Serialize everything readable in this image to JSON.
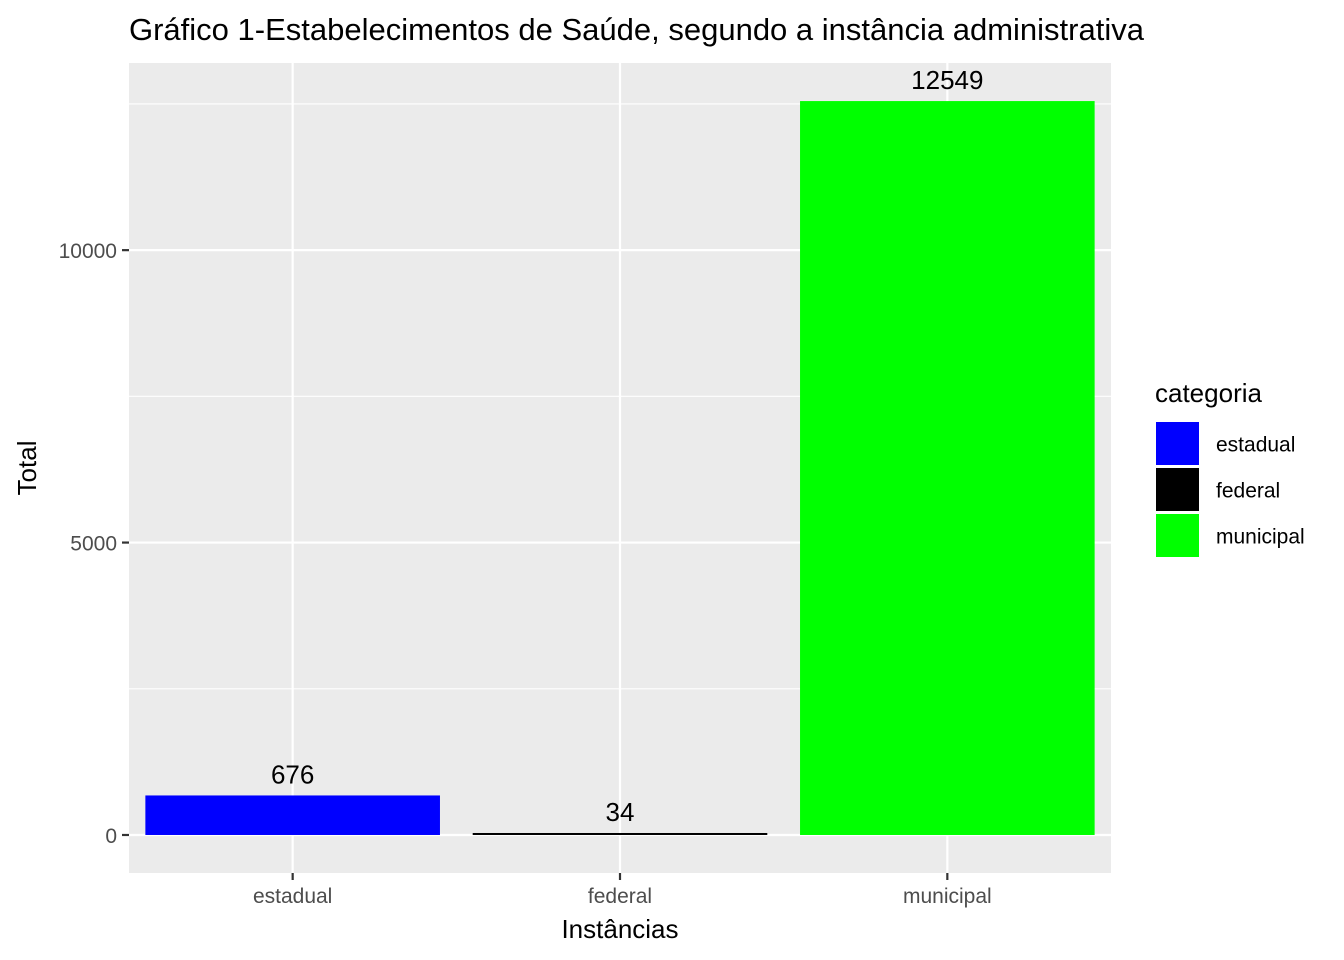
{
  "chart_data": {
    "type": "bar",
    "title": "Gráfico 1-Estabelecimentos de Saúde, segundo a instância administrativa",
    "xlabel": "Instâncias",
    "ylabel": "Total",
    "categories": [
      "estadual",
      "federal",
      "municipal"
    ],
    "values": [
      676,
      34,
      12549
    ],
    "data_labels": [
      "676",
      "34",
      "12549"
    ],
    "colors": [
      "#0000ff",
      "#000000",
      "#00ff00"
    ],
    "ylim": [
      -650,
      13200
    ],
    "yticks": [
      0,
      5000,
      10000
    ],
    "ytick_labels": [
      "0",
      "5000",
      "10000"
    ],
    "grid": true,
    "panel_background": "#ebebeb",
    "legend": {
      "title": "categoria",
      "position": "right",
      "entries": [
        {
          "label": "estadual",
          "color": "#0000ff"
        },
        {
          "label": "federal",
          "color": "#000000"
        },
        {
          "label": "municipal",
          "color": "#00ff00"
        }
      ]
    }
  }
}
